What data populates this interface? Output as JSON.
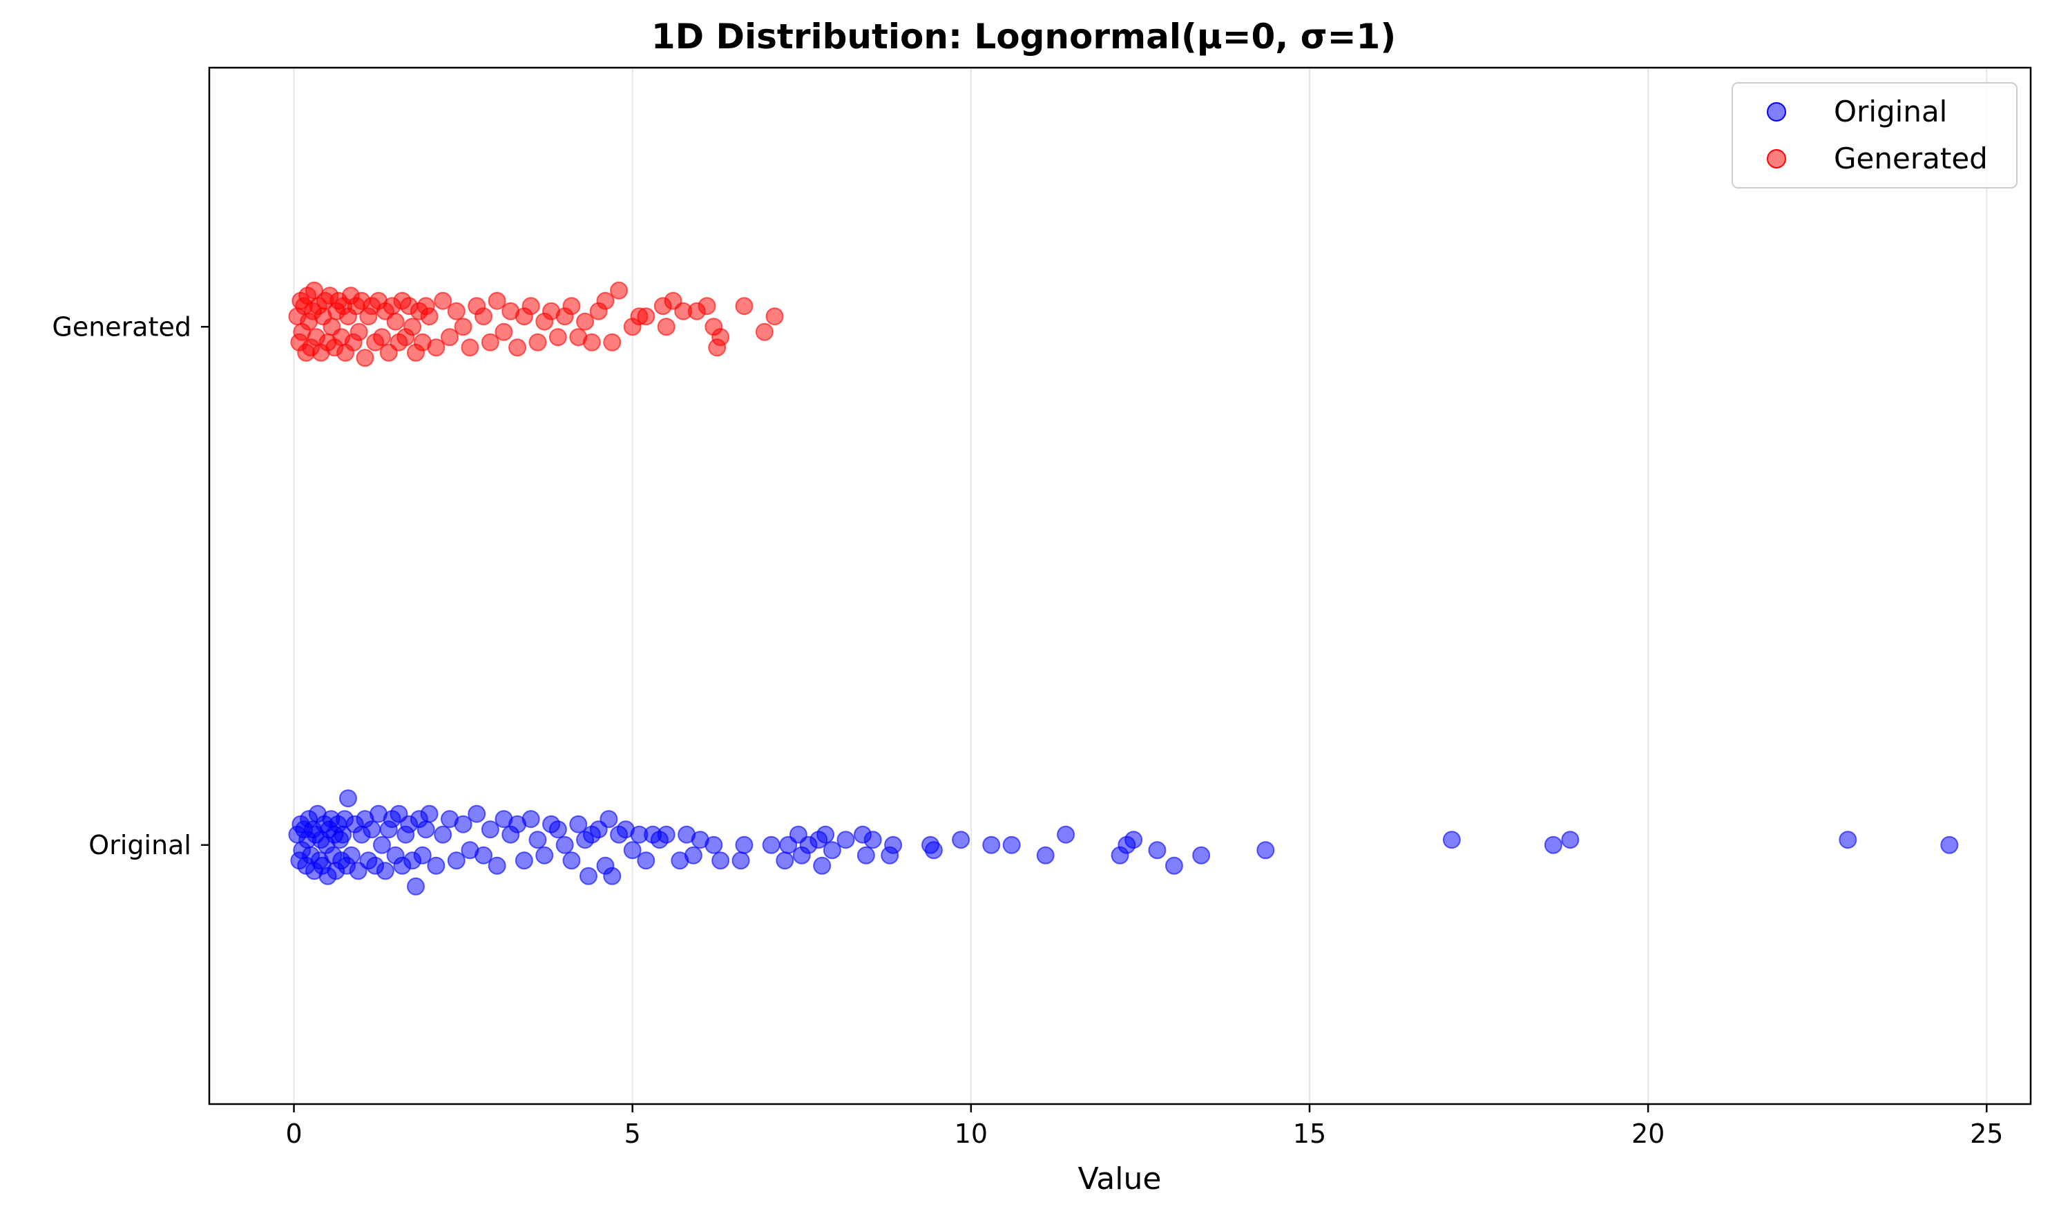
{
  "chart_data": {
    "type": "scatter",
    "title": "1D Distribution: Lognormal(μ=0, σ=1)",
    "xlabel": "Value",
    "ylabel": "",
    "xlim": [
      -1.25,
      25.65
    ],
    "xticks": [
      0,
      5,
      10,
      15,
      20,
      25
    ],
    "x_tick_labels": [
      "0",
      "5",
      "10",
      "15",
      "20",
      "25"
    ],
    "y_categories": [
      "Original",
      "Generated"
    ],
    "grid": {
      "x": true,
      "y": false
    },
    "legend": {
      "position": "top-right",
      "entries": [
        "Original",
        "Generated"
      ]
    },
    "series": [
      {
        "name": "Original",
        "color": "#0000ff",
        "category": "Original",
        "x": [
          0.05,
          0.08,
          0.1,
          0.12,
          0.15,
          0.18,
          0.2,
          0.22,
          0.25,
          0.28,
          0.3,
          0.32,
          0.35,
          0.38,
          0.4,
          0.42,
          0.45,
          0.48,
          0.5,
          0.52,
          0.55,
          0.58,
          0.6,
          0.62,
          0.65,
          0.68,
          0.7,
          0.72,
          0.75,
          0.78,
          0.8,
          0.85,
          0.9,
          0.95,
          1.0,
          1.05,
          1.1,
          1.15,
          1.2,
          1.25,
          1.3,
          1.35,
          1.4,
          1.45,
          1.5,
          1.55,
          1.6,
          1.65,
          1.7,
          1.75,
          1.8,
          1.85,
          1.9,
          1.95,
          2.0,
          2.1,
          2.2,
          2.3,
          2.4,
          2.5,
          2.6,
          2.7,
          2.8,
          2.9,
          3.0,
          3.1,
          3.2,
          3.3,
          3.4,
          3.5,
          3.6,
          3.7,
          3.8,
          3.9,
          4.0,
          4.1,
          4.2,
          4.3,
          4.35,
          4.4,
          4.5,
          4.6,
          4.65,
          4.7,
          4.8,
          4.9,
          5.0,
          5.1,
          5.2,
          5.3,
          5.4,
          5.5,
          5.7,
          5.8,
          5.9,
          6.0,
          6.2,
          6.3,
          6.6,
          6.65,
          7.05,
          7.25,
          7.3,
          7.45,
          7.5,
          7.6,
          7.75,
          7.8,
          7.85,
          7.95,
          8.15,
          8.4,
          8.45,
          8.55,
          8.8,
          8.85,
          9.4,
          9.45,
          9.85,
          10.3,
          10.6,
          11.1,
          11.4,
          12.2,
          12.3,
          12.4,
          12.75,
          13.0,
          13.4,
          14.35,
          17.1,
          18.6,
          18.85,
          22.95,
          24.45
        ],
        "y_offset": [
          0.02,
          -0.03,
          0.04,
          -0.01,
          0.03,
          -0.04,
          0.01,
          0.05,
          -0.02,
          0.03,
          -0.05,
          0.02,
          0.06,
          -0.03,
          0.01,
          -0.04,
          0.04,
          0.0,
          -0.06,
          0.03,
          0.05,
          -0.02,
          0.02,
          -0.05,
          0.04,
          0.01,
          -0.03,
          0.02,
          0.05,
          -0.04,
          0.09,
          -0.02,
          0.04,
          -0.05,
          0.02,
          0.05,
          -0.03,
          0.03,
          -0.04,
          0.06,
          0.0,
          -0.05,
          0.03,
          0.05,
          -0.02,
          0.06,
          -0.04,
          0.02,
          0.04,
          -0.03,
          -0.08,
          0.05,
          -0.02,
          0.03,
          0.06,
          -0.04,
          0.02,
          0.05,
          -0.03,
          0.04,
          -0.01,
          0.06,
          -0.02,
          0.03,
          -0.04,
          0.05,
          0.02,
          0.04,
          -0.03,
          0.05,
          0.01,
          -0.02,
          0.04,
          0.03,
          0.0,
          -0.03,
          0.04,
          0.01,
          -0.06,
          0.02,
          0.03,
          -0.04,
          0.05,
          -0.06,
          0.02,
          0.03,
          -0.01,
          0.02,
          -0.03,
          0.02,
          0.01,
          0.02,
          -0.03,
          0.02,
          -0.02,
          0.01,
          0.0,
          -0.03,
          -0.03,
          0.0,
          0.0,
          -0.03,
          0.0,
          0.02,
          -0.02,
          0.0,
          0.01,
          -0.04,
          0.02,
          -0.01,
          0.01,
          0.02,
          -0.02,
          0.01,
          -0.02,
          0.0,
          0.0,
          -0.01,
          0.01,
          0.0,
          0.0,
          -0.02,
          0.02,
          -0.02,
          0.0,
          0.01,
          -0.01,
          -0.04,
          -0.02,
          -0.01,
          0.01,
          -0.0,
          0.01,
          0.01,
          0.0
        ],
        "jitter_note": ""
      },
      {
        "name": "Generated",
        "color": "#ff0000",
        "category": "Generated",
        "x": [
          0.05,
          0.08,
          0.1,
          0.12,
          0.15,
          0.18,
          0.2,
          0.22,
          0.25,
          0.28,
          0.3,
          0.33,
          0.36,
          0.4,
          0.43,
          0.46,
          0.5,
          0.53,
          0.56,
          0.6,
          0.63,
          0.66,
          0.7,
          0.73,
          0.76,
          0.8,
          0.84,
          0.88,
          0.92,
          0.96,
          1.0,
          1.05,
          1.1,
          1.15,
          1.2,
          1.25,
          1.3,
          1.35,
          1.4,
          1.45,
          1.5,
          1.55,
          1.6,
          1.65,
          1.7,
          1.75,
          1.8,
          1.85,
          1.9,
          1.95,
          2.0,
          2.1,
          2.2,
          2.3,
          2.4,
          2.5,
          2.6,
          2.7,
          2.8,
          2.9,
          3.0,
          3.1,
          3.2,
          3.3,
          3.4,
          3.5,
          3.6,
          3.7,
          3.8,
          3.9,
          4.0,
          4.1,
          4.2,
          4.3,
          4.4,
          4.5,
          4.6,
          4.7,
          4.8,
          5.0,
          5.1,
          5.2,
          5.45,
          5.5,
          5.6,
          5.75,
          5.95,
          6.1,
          6.2,
          6.25,
          6.3,
          6.65,
          6.95,
          7.1
        ],
        "y_offset": [
          0.02,
          -0.03,
          0.05,
          -0.01,
          0.04,
          -0.05,
          0.06,
          0.01,
          -0.04,
          0.03,
          0.07,
          -0.02,
          0.04,
          -0.05,
          0.02,
          0.05,
          -0.03,
          0.06,
          0.0,
          -0.04,
          0.03,
          0.05,
          -0.02,
          0.04,
          -0.05,
          0.02,
          0.06,
          -0.03,
          0.04,
          -0.01,
          0.05,
          -0.06,
          0.02,
          0.04,
          -0.03,
          0.05,
          -0.02,
          0.03,
          -0.05,
          0.04,
          0.01,
          -0.03,
          0.05,
          -0.02,
          0.04,
          0.0,
          -0.05,
          0.03,
          -0.03,
          0.04,
          0.02,
          -0.04,
          0.05,
          -0.02,
          0.03,
          0.0,
          -0.04,
          0.04,
          0.02,
          -0.03,
          0.05,
          -0.01,
          0.03,
          -0.04,
          0.02,
          0.04,
          -0.03,
          0.01,
          0.03,
          -0.02,
          0.02,
          0.04,
          -0.02,
          0.01,
          -0.03,
          0.03,
          0.05,
          -0.03,
          0.07,
          -0.0,
          0.02,
          0.02,
          0.04,
          -0.0,
          0.05,
          0.03,
          0.03,
          0.04,
          -0.0,
          -0.04,
          -0.02,
          0.04,
          -0.01,
          0.02
        ],
        "jitter_note": ""
      }
    ]
  }
}
